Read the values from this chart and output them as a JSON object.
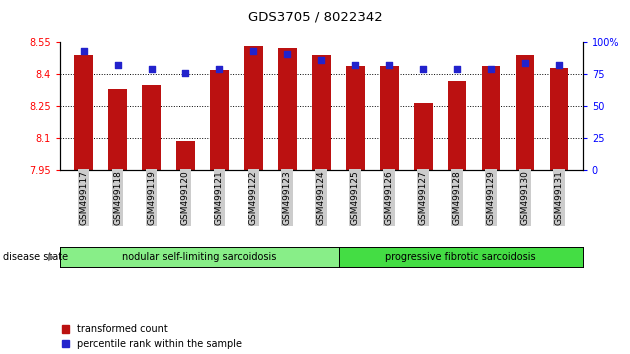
{
  "title": "GDS3705 / 8022342",
  "samples": [
    "GSM499117",
    "GSM499118",
    "GSM499119",
    "GSM499120",
    "GSM499121",
    "GSM499122",
    "GSM499123",
    "GSM499124",
    "GSM499125",
    "GSM499126",
    "GSM499127",
    "GSM499128",
    "GSM499129",
    "GSM499130",
    "GSM499131"
  ],
  "transformed_count": [
    8.49,
    8.33,
    8.35,
    8.085,
    8.42,
    8.535,
    8.525,
    8.49,
    8.44,
    8.44,
    8.265,
    8.37,
    8.44,
    8.49,
    8.43
  ],
  "percentile_rank": [
    93,
    82,
    79,
    76,
    79,
    93,
    91,
    86,
    82,
    82,
    79,
    79,
    79,
    84,
    82
  ],
  "ylim_left": [
    7.95,
    8.55
  ],
  "ylim_right": [
    0,
    100
  ],
  "yticks_left": [
    7.95,
    8.1,
    8.25,
    8.4,
    8.55
  ],
  "yticks_right": [
    0,
    25,
    50,
    75,
    100
  ],
  "bar_color": "#BB1111",
  "dot_color": "#2222CC",
  "bar_bottom": 7.95,
  "group1_label": "nodular self-limiting sarcoidosis",
  "group1_indices": [
    0,
    1,
    2,
    3,
    4,
    5,
    6,
    7
  ],
  "group2_label": "progressive fibrotic sarcoidosis",
  "group2_indices": [
    8,
    9,
    10,
    11,
    12,
    13,
    14
  ],
  "disease_state_label": "disease state",
  "legend1": "transformed count",
  "legend2": "percentile rank within the sample",
  "group1_color": "#88EE88",
  "group2_color": "#44DD44",
  "tick_bg_color": "#CCCCCC",
  "figure_width": 6.3,
  "figure_height": 3.54
}
